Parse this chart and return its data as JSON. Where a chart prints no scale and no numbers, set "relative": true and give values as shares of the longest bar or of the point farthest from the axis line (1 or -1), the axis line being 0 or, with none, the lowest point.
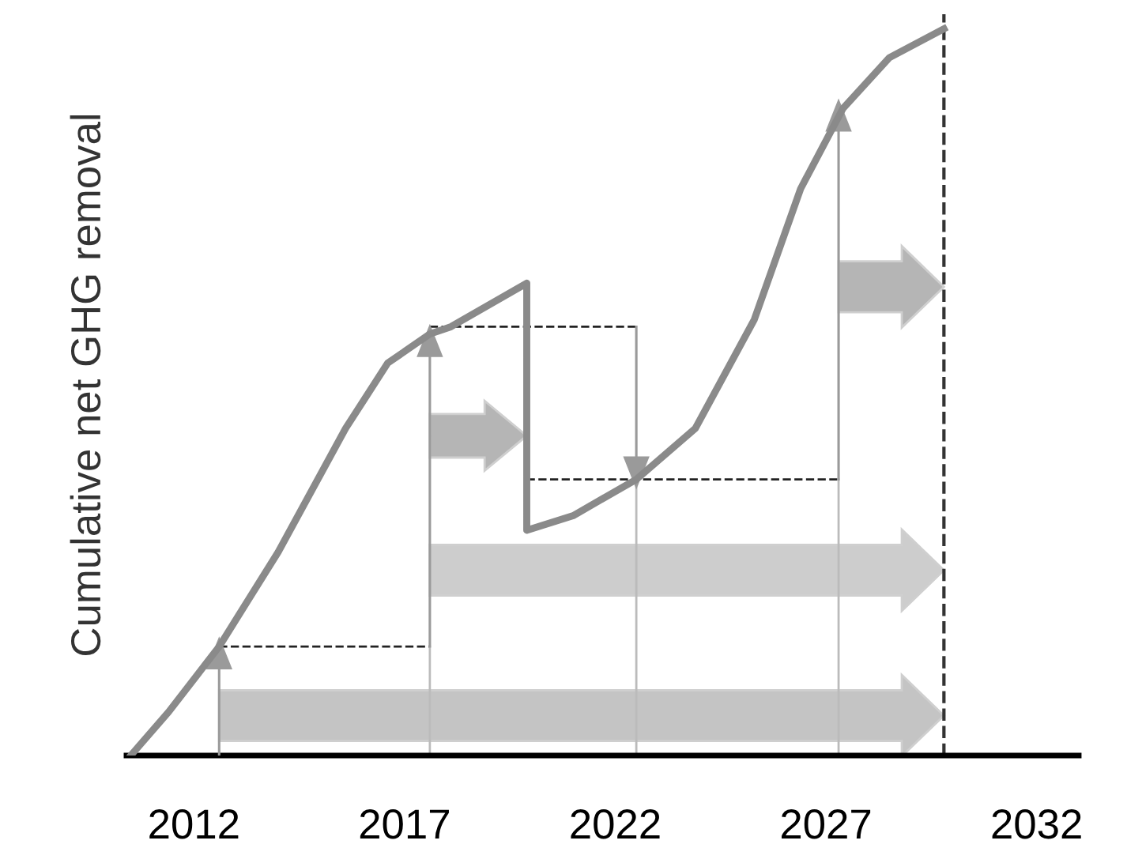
{
  "chart_data": {
    "type": "line",
    "relative": true,
    "ylabel": "Cumulative net GHG removal",
    "x": [
      2010.5,
      2011.4,
      2012.6,
      2014.0,
      2015.6,
      2016.6,
      2017.6,
      2018.1,
      2019.9,
      2019.9,
      2021.0,
      2022.5,
      2023.9,
      2025.3,
      2026.4,
      2027.4,
      2028.5,
      2029.8
    ],
    "series": [
      {
        "color": "#8a8a8a",
        "values": [
          0,
          0.06,
          0.15,
          0.28,
          0.45,
          0.54,
          0.58,
          0.59,
          0.65,
          0.31,
          0.33,
          0.38,
          0.45,
          0.6,
          0.78,
          0.89,
          0.96,
          1.0
        ]
      }
    ],
    "xlim": [
      2010.4,
      2033.0
    ],
    "xticks": [
      2012,
      2017,
      2022,
      2027,
      2032
    ],
    "ref_lines": [
      {
        "axis": "x",
        "value": 2029.8,
        "color": "#333333",
        "line_style": "dashed"
      }
    ],
    "grid": false,
    "legend": false,
    "marker": "none",
    "line_style": "solid"
  }
}
